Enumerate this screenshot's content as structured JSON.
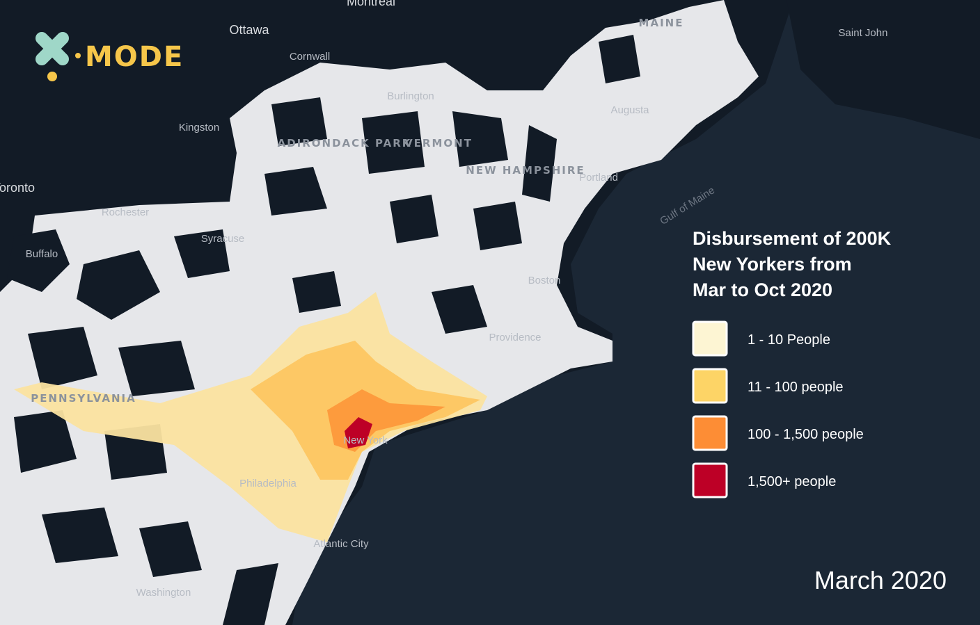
{
  "logo": {
    "text": "MODE"
  },
  "title": [
    "Disbursement of 200K",
    "New Yorkers from",
    "Mar to Oct 2020"
  ],
  "legend": [
    {
      "label": "1 - 10 People",
      "color": "#fdf5d3"
    },
    {
      "label": "11 - 100 people",
      "color": "#fdd466"
    },
    {
      "label": "100 - 1,500 people",
      "color": "#fd8d35"
    },
    {
      "label": "1,500+ people",
      "color": "#bd0026"
    }
  ],
  "date": "March 2020",
  "place_labels": [
    "Montreal",
    "Ottawa",
    "Cornwall",
    "Kingston",
    "Toronto",
    "Rochester",
    "Buffalo",
    "Syracuse",
    "Burlington",
    "MAINE",
    "Saint John",
    "Augusta",
    "Portland",
    "Boston",
    "Providence",
    "Gulf of Maine",
    "New York",
    "Philadelphia",
    "Atlantic City",
    "Washington",
    "ADIRONDACK PARK",
    "VERMONT",
    "NEW HAMPSHIRE",
    "PENNSYLVANIA"
  ]
}
